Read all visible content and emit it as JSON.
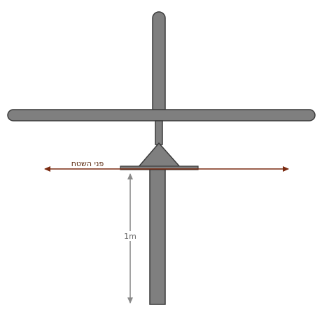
{
  "diagram": {
    "ground_label": "פני השטח",
    "depth_label": "1m",
    "colors": {
      "metal_fill": "#7f7f7f",
      "metal_stroke": "#3a3a3a",
      "ground_line": "#7a2a10",
      "depth_arrow": "#8a8a8a",
      "ground_label_text": "#5a2a10",
      "depth_label_text": "#666666"
    }
  }
}
